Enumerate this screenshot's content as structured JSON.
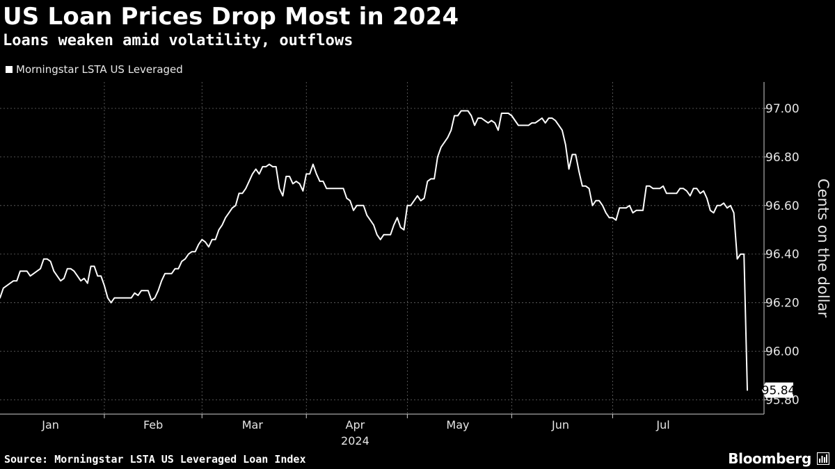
{
  "header": {
    "title": "US Loan Prices Drop Most in 2024",
    "subtitle": "Loans weaken amid volatility, outflows"
  },
  "legend": {
    "label": "Morningstar LSTA US Leveraged",
    "color": "#ffffff"
  },
  "footer": {
    "source": "Source: Morningstar LSTA US Leveraged Loan Index",
    "brand": "Bloomberg"
  },
  "chart_data": {
    "type": "line",
    "title": "US Loan Prices Drop Most in 2024",
    "subtitle": "Loans weaken amid volatility, outflows",
    "xlabel": "2024",
    "ylabel": "Cents on the dollar",
    "ylim": [
      95.8,
      97.05
    ],
    "yticks": [
      95.8,
      96.0,
      96.2,
      96.4,
      96.6,
      96.8,
      97.0
    ],
    "ytick_labels": [
      "95.80",
      "96.00",
      "96.20",
      "96.40",
      "96.60",
      "96.80",
      "97.00"
    ],
    "month_labels": [
      "Jan",
      "Feb",
      "Mar",
      "Apr",
      "May",
      "Jun",
      "Jul"
    ],
    "x_day_range": [
      1,
      212
    ],
    "month_label_days": [
      16,
      46.5,
      76,
      106.5,
      137,
      167.5,
      198
    ],
    "month_boundary_days": [
      32,
      61,
      92,
      122,
      153,
      183
    ],
    "year_label": "2024",
    "grid": true,
    "last_value_label": "95.84",
    "series": [
      {
        "name": "Morningstar LSTA US Leveraged",
        "color": "#ffffff",
        "points": [
          [
            1,
            96.22
          ],
          [
            2,
            96.26
          ],
          [
            3,
            96.27
          ],
          [
            4,
            96.28
          ],
          [
            5,
            96.29
          ],
          [
            6,
            96.29
          ],
          [
            7,
            96.33
          ],
          [
            8,
            96.33
          ],
          [
            9,
            96.33
          ],
          [
            10,
            96.31
          ],
          [
            11,
            96.32
          ],
          [
            12,
            96.33
          ],
          [
            13,
            96.34
          ],
          [
            14,
            96.38
          ],
          [
            15,
            96.38
          ],
          [
            16,
            96.37
          ],
          [
            17,
            96.33
          ],
          [
            18,
            96.31
          ],
          [
            19,
            96.29
          ],
          [
            20,
            96.3
          ],
          [
            21,
            96.34
          ],
          [
            22,
            96.34
          ],
          [
            23,
            96.33
          ],
          [
            24,
            96.31
          ],
          [
            25,
            96.29
          ],
          [
            26,
            96.3
          ],
          [
            27,
            96.28
          ],
          [
            28,
            96.35
          ],
          [
            29,
            96.35
          ],
          [
            30,
            96.31
          ],
          [
            31,
            96.31
          ],
          [
            32,
            96.27
          ],
          [
            33,
            96.22
          ],
          [
            34,
            96.2
          ],
          [
            35,
            96.22
          ],
          [
            36,
            96.22
          ],
          [
            37,
            96.22
          ],
          [
            38,
            96.22
          ],
          [
            39,
            96.22
          ],
          [
            40,
            96.22
          ],
          [
            41,
            96.24
          ],
          [
            42,
            96.23
          ],
          [
            43,
            96.25
          ],
          [
            44,
            96.25
          ],
          [
            45,
            96.25
          ],
          [
            46,
            96.21
          ],
          [
            47,
            96.22
          ],
          [
            48,
            96.25
          ],
          [
            49,
            96.29
          ],
          [
            50,
            96.32
          ],
          [
            51,
            96.32
          ],
          [
            52,
            96.32
          ],
          [
            53,
            96.34
          ],
          [
            54,
            96.34
          ],
          [
            55,
            96.37
          ],
          [
            56,
            96.38
          ],
          [
            57,
            96.4
          ],
          [
            58,
            96.41
          ],
          [
            59,
            96.41
          ],
          [
            60,
            96.44
          ],
          [
            61,
            96.46
          ],
          [
            62,
            96.45
          ],
          [
            63,
            96.43
          ],
          [
            64,
            96.46
          ],
          [
            65,
            96.46
          ],
          [
            66,
            96.5
          ],
          [
            67,
            96.52
          ],
          [
            68,
            96.55
          ],
          [
            69,
            96.57
          ],
          [
            70,
            96.59
          ],
          [
            71,
            96.6
          ],
          [
            72,
            96.65
          ],
          [
            73,
            96.65
          ],
          [
            74,
            96.67
          ],
          [
            75,
            96.7
          ],
          [
            76,
            96.73
          ],
          [
            77,
            96.75
          ],
          [
            78,
            96.73
          ],
          [
            79,
            96.76
          ],
          [
            80,
            96.76
          ],
          [
            81,
            96.77
          ],
          [
            82,
            96.76
          ],
          [
            83,
            96.76
          ],
          [
            84,
            96.67
          ],
          [
            85,
            96.64
          ],
          [
            86,
            96.72
          ],
          [
            87,
            96.72
          ],
          [
            88,
            96.69
          ],
          [
            89,
            96.7
          ],
          [
            90,
            96.69
          ],
          [
            91,
            96.66
          ],
          [
            92,
            96.73
          ],
          [
            93,
            96.73
          ],
          [
            94,
            96.77
          ],
          [
            95,
            96.73
          ],
          [
            96,
            96.7
          ],
          [
            97,
            96.7
          ],
          [
            98,
            96.67
          ],
          [
            99,
            96.67
          ],
          [
            100,
            96.67
          ],
          [
            101,
            96.67
          ],
          [
            102,
            96.67
          ],
          [
            103,
            96.67
          ],
          [
            104,
            96.63
          ],
          [
            105,
            96.62
          ],
          [
            106,
            96.58
          ],
          [
            107,
            96.6
          ],
          [
            108,
            96.6
          ],
          [
            109,
            96.6
          ],
          [
            110,
            96.56
          ],
          [
            111,
            96.54
          ],
          [
            112,
            96.52
          ],
          [
            113,
            96.48
          ],
          [
            114,
            96.46
          ],
          [
            115,
            96.48
          ],
          [
            116,
            96.48
          ],
          [
            117,
            96.48
          ],
          [
            118,
            96.52
          ],
          [
            119,
            96.55
          ],
          [
            120,
            96.51
          ],
          [
            121,
            96.5
          ],
          [
            122,
            96.6
          ],
          [
            123,
            96.6
          ],
          [
            124,
            96.62
          ],
          [
            125,
            96.64
          ],
          [
            126,
            96.62
          ],
          [
            127,
            96.63
          ],
          [
            128,
            96.7
          ],
          [
            129,
            96.71
          ],
          [
            130,
            96.71
          ],
          [
            131,
            96.8
          ],
          [
            132,
            96.84
          ],
          [
            133,
            96.86
          ],
          [
            134,
            96.88
          ],
          [
            135,
            96.91
          ],
          [
            136,
            96.97
          ],
          [
            137,
            96.97
          ],
          [
            138,
            96.99
          ],
          [
            139,
            96.99
          ],
          [
            140,
            96.99
          ],
          [
            141,
            96.97
          ],
          [
            142,
            96.93
          ],
          [
            143,
            96.96
          ],
          [
            144,
            96.96
          ],
          [
            145,
            96.95
          ],
          [
            146,
            96.94
          ],
          [
            147,
            96.95
          ],
          [
            148,
            96.94
          ],
          [
            149,
            96.91
          ],
          [
            150,
            96.98
          ],
          [
            151,
            96.98
          ],
          [
            152,
            96.98
          ],
          [
            153,
            96.97
          ],
          [
            154,
            96.95
          ],
          [
            155,
            96.93
          ],
          [
            156,
            96.93
          ],
          [
            157,
            96.93
          ],
          [
            158,
            96.93
          ],
          [
            159,
            96.94
          ],
          [
            160,
            96.94
          ],
          [
            161,
            96.95
          ],
          [
            162,
            96.96
          ],
          [
            163,
            96.94
          ],
          [
            164,
            96.96
          ],
          [
            165,
            96.96
          ],
          [
            166,
            96.95
          ],
          [
            167,
            96.93
          ],
          [
            168,
            96.91
          ],
          [
            169,
            96.85
          ],
          [
            170,
            96.75
          ],
          [
            171,
            96.81
          ],
          [
            172,
            96.81
          ],
          [
            173,
            96.74
          ],
          [
            174,
            96.68
          ],
          [
            175,
            96.68
          ],
          [
            176,
            96.67
          ],
          [
            177,
            96.6
          ],
          [
            178,
            96.62
          ],
          [
            179,
            96.62
          ],
          [
            180,
            96.6
          ],
          [
            181,
            96.57
          ],
          [
            182,
            96.55
          ],
          [
            183,
            96.55
          ],
          [
            184,
            96.54
          ],
          [
            185,
            96.59
          ],
          [
            186,
            96.59
          ],
          [
            187,
            96.59
          ],
          [
            188,
            96.6
          ],
          [
            189,
            96.57
          ],
          [
            190,
            96.58
          ],
          [
            191,
            96.58
          ],
          [
            192,
            96.58
          ],
          [
            193,
            96.68
          ],
          [
            194,
            96.68
          ],
          [
            195,
            96.67
          ],
          [
            196,
            96.67
          ],
          [
            197,
            96.67
          ],
          [
            198,
            96.68
          ],
          [
            199,
            96.65
          ],
          [
            200,
            96.65
          ],
          [
            201,
            96.65
          ],
          [
            202,
            96.65
          ],
          [
            203,
            96.67
          ],
          [
            204,
            96.67
          ],
          [
            205,
            96.66
          ],
          [
            206,
            96.64
          ],
          [
            207,
            96.67
          ],
          [
            208,
            96.67
          ],
          [
            209,
            96.65
          ],
          [
            210,
            96.66
          ],
          [
            211,
            96.63
          ],
          [
            212,
            96.58
          ],
          [
            213,
            96.57
          ],
          [
            214,
            96.6
          ],
          [
            215,
            96.6
          ],
          [
            216,
            96.61
          ],
          [
            217,
            96.59
          ],
          [
            218,
            96.6
          ],
          [
            219,
            96.57
          ],
          [
            220,
            96.38
          ],
          [
            221,
            96.4
          ],
          [
            222,
            96.4
          ],
          [
            223,
            95.84
          ]
        ]
      }
    ]
  },
  "icons": {
    "brand": "bloomberg-terminal-icon",
    "legend": "legend-swatch-square"
  }
}
